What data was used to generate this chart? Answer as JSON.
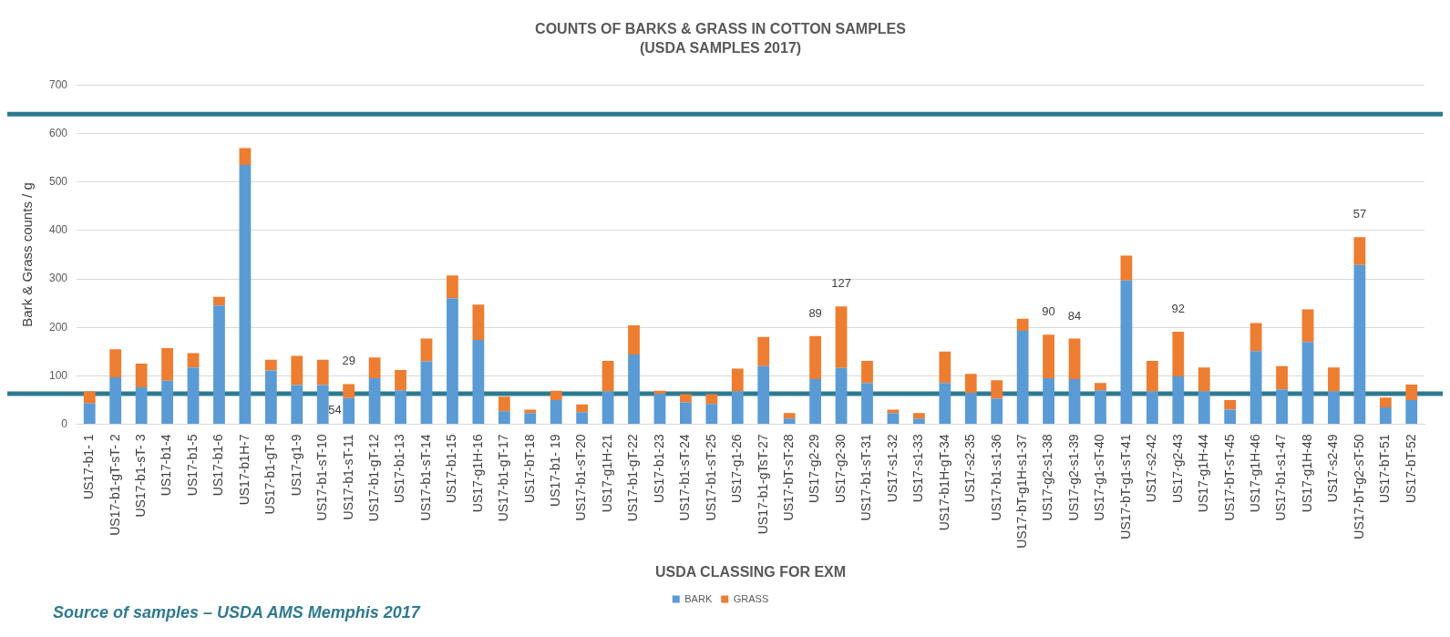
{
  "chart_data": {
    "type": "bar",
    "title": "COUNTS OF BARKS & GRASS IN COTTON SAMPLES",
    "subtitle": "(USDA SAMPLES 2017)",
    "xlabel": "USDA CLASSING FOR EXM",
    "ylabel": "Bark & Grass counts / g",
    "categories": [
      "US17-b1- 1",
      "US17-b1-gT-sT- 2",
      "US17-b1-sT- 3",
      "US17-b1-4",
      "US17-b1-5",
      "US17-b1-6",
      "US17-b1H-7",
      "US17-b1-gT-8",
      "US17-g1-9",
      "US17-b1-sT-10",
      "US17-b1-sT-11",
      "US17-b1-gT-12",
      "US17-b1-13",
      "US17-b1-sT-14",
      "US17-b1-15",
      "US17-g1H-16",
      "US17-b1-gT-17",
      "US17-bT-18",
      "US17-b1- 19",
      "US17-b1-sT-20",
      "US17-g1H-21",
      "US17-b1-gT-22",
      "US17-b1-23",
      "US17-b1-sT-24",
      "US17-b1-sT-25",
      "US17-g1-26",
      "US17-b1-gTsT-27",
      "US17-bT-sT-28",
      "US17-g2-29",
      "US17-g2-30",
      "US17-b1-sT-31",
      "US17-s1-32",
      "US17-s1-33",
      "US17-b1H-gT-34",
      "US17-s2-35",
      "US17-b1-s1-36",
      "US17-bT-g1H-s1-37",
      "US17-g2-s1-38",
      "US17-g2-s1-39",
      "US17-g1-sT-40",
      "US17-bT-g1-sT-41",
      "US17-s2-42",
      "US17-g2-43",
      "US17-g1H-44",
      "US17-bT-sT-45",
      "US17-g1H-46",
      "US17-b1-s1-47",
      "US17-g1H-48",
      "US17-s2-49",
      "US17-bT-g2-sT-50",
      "US17-bT-51",
      "US17-bT-52"
    ],
    "series": [
      {
        "name": "BARK",
        "color": "#5b9bd5",
        "values": [
          43,
          97,
          76,
          90,
          117,
          245,
          535,
          111,
          81,
          81,
          54,
          95,
          70,
          130,
          260,
          174,
          27,
          23,
          50,
          25,
          68,
          144,
          63,
          45,
          42,
          68,
          120,
          12,
          93,
          116,
          85,
          23,
          12,
          85,
          65,
          53,
          193,
          95,
          93,
          70,
          297,
          68,
          99,
          68,
          30,
          151,
          72,
          170,
          68,
          329,
          35,
          50
        ],
        "value_labels": [
          null,
          null,
          null,
          null,
          null,
          null,
          null,
          null,
          null,
          null,
          "54",
          null,
          null,
          null,
          null,
          null,
          null,
          null,
          null,
          null,
          null,
          null,
          null,
          null,
          null,
          null,
          null,
          null,
          null,
          null,
          null,
          null,
          null,
          null,
          null,
          null,
          null,
          null,
          null,
          null,
          null,
          null,
          null,
          null,
          null,
          null,
          null,
          null,
          null,
          null,
          null,
          null
        ]
      },
      {
        "name": "GRASS",
        "color": "#ed7d31",
        "values": [
          25,
          58,
          49,
          67,
          30,
          18,
          35,
          22,
          60,
          52,
          29,
          43,
          42,
          47,
          47,
          73,
          30,
          7,
          19,
          16,
          63,
          60,
          6,
          17,
          20,
          47,
          60,
          11,
          89,
          127,
          46,
          7,
          11,
          65,
          39,
          38,
          25,
          90,
          84,
          15,
          51,
          63,
          92,
          49,
          20,
          58,
          48,
          67,
          49,
          57,
          20,
          32
        ],
        "value_labels": [
          null,
          null,
          null,
          null,
          null,
          null,
          null,
          null,
          null,
          null,
          "29",
          null,
          null,
          null,
          null,
          null,
          null,
          null,
          null,
          null,
          null,
          null,
          null,
          null,
          null,
          null,
          null,
          null,
          "89",
          "127",
          null,
          null,
          null,
          null,
          null,
          null,
          null,
          "90",
          "84",
          null,
          null,
          null,
          "92",
          null,
          null,
          null,
          null,
          null,
          null,
          "57",
          null,
          null
        ]
      }
    ],
    "stacked": true,
    "ylim": [
      0,
      700
    ],
    "yticks": [
      0,
      100,
      200,
      300,
      400,
      500,
      600,
      700
    ],
    "grid": "y",
    "legend": "bottom",
    "ref_lines": [
      {
        "axis": "y",
        "value": 640,
        "color": "#2e7a90"
      },
      {
        "axis": "y",
        "value": 63,
        "color": "#2e7a90"
      }
    ],
    "annotations": [
      "Source of samples – USDA AMS Memphis 2017"
    ]
  }
}
